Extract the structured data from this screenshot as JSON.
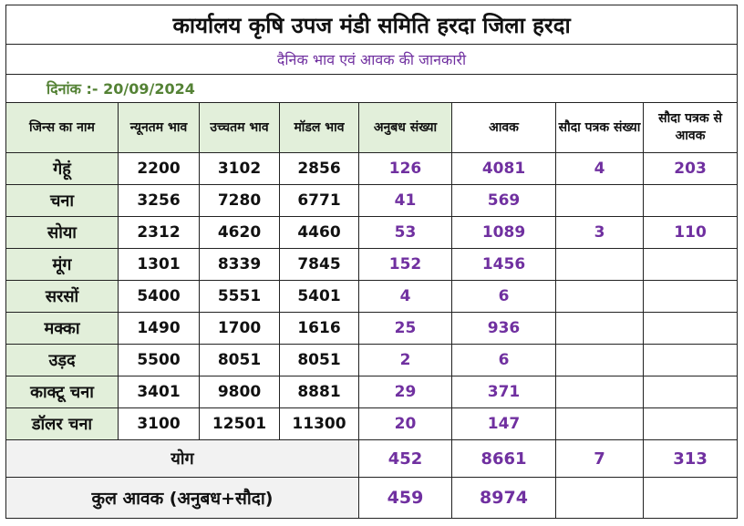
{
  "title": "कार्यालय कृषि उपज मंडी समिति हरदा जिला हरदा",
  "subtitle": "दैनिक भाव एवं आवक की जानकारी",
  "date_line": "दिनांक :- 20/09/2024",
  "headers": [
    "जिन्स का नाम",
    "न्यूनतम भाव",
    "उच्चतम भाव",
    "मॉडल भाव",
    "अनुबध संख्या",
    "आवक",
    "सौदा पत्रक संख्या",
    "सौदा पत्रक से आवक"
  ],
  "rows": [
    {
      "name": "गेहूं",
      "min": "2200",
      "max": "3102",
      "modal": "2856",
      "anubadh": "126",
      "awak": "4081",
      "sauda_count": "4",
      "sauda_awak": "203"
    },
    {
      "name": "चना",
      "min": "3256",
      "max": "7280",
      "modal": "6771",
      "anubadh": "41",
      "awak": "569",
      "sauda_count": "",
      "sauda_awak": ""
    },
    {
      "name": "सोया",
      "min": "2312",
      "max": "4620",
      "modal": "4460",
      "anubadh": "53",
      "awak": "1089",
      "sauda_count": "3",
      "sauda_awak": "110"
    },
    {
      "name": "मूंग",
      "min": "1301",
      "max": "8339",
      "modal": "7845",
      "anubadh": "152",
      "awak": "1456",
      "sauda_count": "",
      "sauda_awak": ""
    },
    {
      "name": "सरसों",
      "min": "5400",
      "max": "5551",
      "modal": "5401",
      "anubadh": "4",
      "awak": "6",
      "sauda_count": "",
      "sauda_awak": ""
    },
    {
      "name": "मक्का",
      "min": "1490",
      "max": "1700",
      "modal": "1616",
      "anubadh": "25",
      "awak": "936",
      "sauda_count": "",
      "sauda_awak": ""
    },
    {
      "name": "उड़द",
      "min": "5500",
      "max": "8051",
      "modal": "8051",
      "anubadh": "2",
      "awak": "6",
      "sauda_count": "",
      "sauda_awak": ""
    },
    {
      "name": "काक्टू चना",
      "min": "3401",
      "max": "9800",
      "modal": "8881",
      "anubadh": "29",
      "awak": "371",
      "sauda_count": "",
      "sauda_awak": ""
    },
    {
      "name": "डॉलर चना",
      "min": "3100",
      "max": "12501",
      "modal": "11300",
      "anubadh": "20",
      "awak": "147",
      "sauda_count": "",
      "sauda_awak": ""
    }
  ],
  "total": {
    "label": "योग",
    "anubadh": "452",
    "awak": "8661",
    "sauda_count": "7",
    "sauda_awak": "313"
  },
  "grand_total": {
    "label": "कुल आवक (अनुबध+सौदा)",
    "anubadh": "459",
    "awak": "8974"
  },
  "colors": {
    "header_bg": "#e2efda",
    "accent_purple": "#7030a0",
    "date_green": "#548235",
    "total_bg": "#f2f2f2"
  }
}
